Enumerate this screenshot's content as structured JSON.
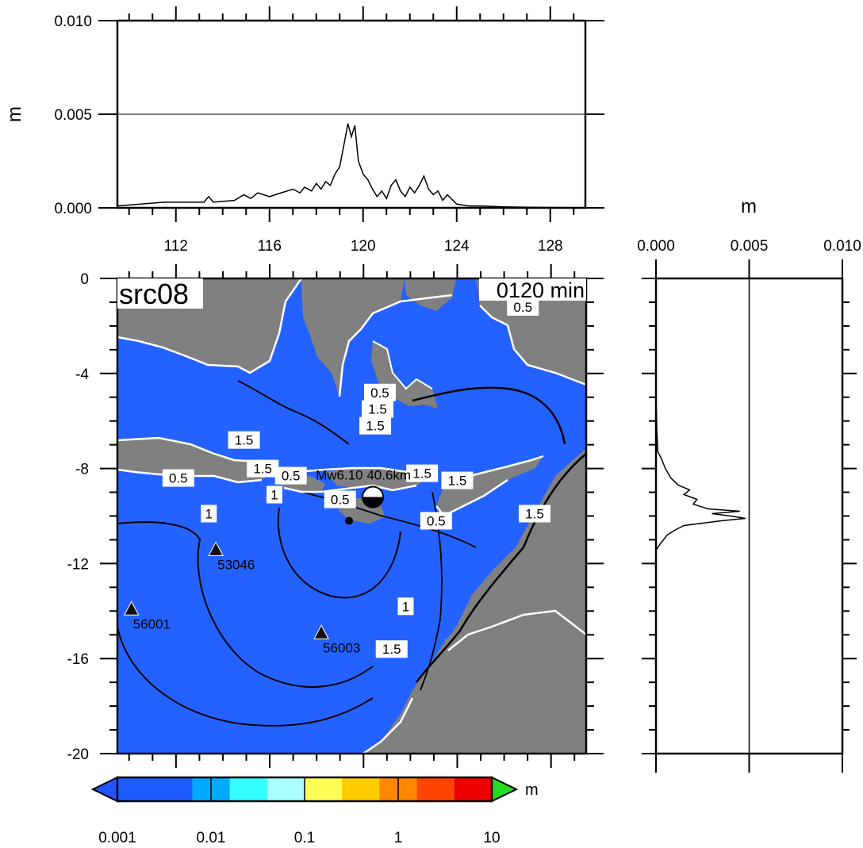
{
  "chart_data": [
    {
      "id": "top-profile",
      "type": "line",
      "ylabel": "m",
      "xlim": [
        109.5,
        129.5
      ],
      "ylim": [
        0,
        0.01
      ],
      "xticks": [
        112,
        116,
        120,
        124,
        128
      ],
      "xtick_labels": [
        "112",
        "116",
        "120",
        "124",
        "128"
      ],
      "yticks": [
        0,
        0.005,
        0.01
      ],
      "ytick_labels": [
        "0.000",
        "0.005",
        "0.010"
      ],
      "gridline_y": 0.005,
      "series": [
        {
          "x": [
            109.5,
            110.5,
            111.5,
            112.5,
            113.2,
            113.4,
            113.6,
            114.5,
            114.9,
            115.2,
            115.5,
            116.0,
            116.5,
            117.0,
            117.3,
            117.5,
            117.8,
            118.0,
            118.2,
            118.4,
            118.6,
            118.8,
            119.0,
            119.2,
            119.35,
            119.5,
            119.65,
            119.8,
            120.0,
            120.2,
            120.4,
            120.6,
            120.8,
            121.0,
            121.2,
            121.4,
            121.6,
            121.8,
            122.0,
            122.2,
            122.4,
            122.6,
            122.8,
            123.0,
            123.2,
            123.4,
            123.6,
            124.0,
            124.5,
            125.0,
            126.0,
            127.0,
            128.0,
            129.0
          ],
          "y": [
            0.0001,
            0.0002,
            0.0003,
            0.0003,
            0.0003,
            0.0006,
            0.0003,
            0.0004,
            0.0007,
            0.0005,
            0.0008,
            0.0006,
            0.0008,
            0.001,
            0.0008,
            0.0011,
            0.0009,
            0.0013,
            0.001,
            0.0014,
            0.0012,
            0.0018,
            0.0022,
            0.0035,
            0.0045,
            0.0038,
            0.0044,
            0.0025,
            0.0018,
            0.0015,
            0.001,
            0.0006,
            0.0009,
            0.0005,
            0.0012,
            0.0015,
            0.0009,
            0.0006,
            0.0011,
            0.0008,
            0.0012,
            0.0017,
            0.001,
            0.0007,
            0.0009,
            0.0004,
            0.0007,
            0.0002,
            0.0001,
            0.0001,
            5e-05,
            3e-05,
            2e-05,
            1e-05
          ]
        }
      ]
    },
    {
      "id": "right-profile",
      "type": "line",
      "xlabel": "m",
      "xlim": [
        0,
        0.01
      ],
      "ylim": [
        -20,
        0
      ],
      "xticks": [
        0,
        0.005,
        0.01
      ],
      "xtick_labels": [
        "0.000",
        "0.005",
        "0.010"
      ],
      "gridline_x": 0.005,
      "series": [
        {
          "y": [
            -5.5,
            -6.5,
            -7.3,
            -7.6,
            -8.0,
            -8.4,
            -8.7,
            -8.9,
            -9.1,
            -9.3,
            -9.5,
            -9.7,
            -9.8,
            -9.9,
            -10.0,
            -10.1,
            -10.2,
            -10.3,
            -10.4,
            -10.6,
            -10.8,
            -11.0,
            -11.2,
            -11.4
          ],
          "x": [
            2e-05,
            5e-05,
            0.0001,
            0.0003,
            0.0005,
            0.0008,
            0.0012,
            0.0018,
            0.0015,
            0.0022,
            0.002,
            0.0028,
            0.0045,
            0.003,
            0.004,
            0.0048,
            0.0035,
            0.0025,
            0.0015,
            0.001,
            0.0006,
            0.0004,
            0.0002,
            5e-05
          ]
        }
      ]
    },
    {
      "id": "main-map",
      "type": "heatmap",
      "title": "src08",
      "time_label": "0120 min",
      "xlim": [
        109.5,
        129.5
      ],
      "ylim": [
        -20,
        0
      ],
      "yticks": [
        0,
        -4,
        -8,
        -12,
        -16,
        -20
      ],
      "ytick_labels": [
        "0",
        "-4",
        "-8",
        "-12",
        "-16",
        "-20"
      ],
      "epicenter_label": "Mw6.10  40.6km",
      "epicenter": {
        "lon": 120.4,
        "lat": -9.2
      },
      "stations": [
        {
          "name": "53046",
          "lon": 113.7,
          "lat": -11.4
        },
        {
          "name": "56001",
          "lon": 110.1,
          "lat": -13.9
        },
        {
          "name": "56003",
          "lon": 118.2,
          "lat": -14.9
        }
      ],
      "contour_labels": [
        {
          "text": "0.5",
          "lon": 112.1,
          "lat": -8.4
        },
        {
          "text": "1.5",
          "lon": 114.9,
          "lat": -6.8
        },
        {
          "text": "1.5",
          "lon": 115.7,
          "lat": -8.0
        },
        {
          "text": "0.5",
          "lon": 116.9,
          "lat": -8.3
        },
        {
          "text": "1",
          "lon": 116.2,
          "lat": -9.1
        },
        {
          "text": "0.5",
          "lon": 119.0,
          "lat": -9.3
        },
        {
          "text": "1",
          "lon": 113.4,
          "lat": -9.9
        },
        {
          "text": "0.5",
          "lon": 120.7,
          "lat": -4.8
        },
        {
          "text": "1.5",
          "lon": 120.6,
          "lat": -5.5
        },
        {
          "text": "1.5",
          "lon": 120.5,
          "lat": -6.2
        },
        {
          "text": "1.5",
          "lon": 122.5,
          "lat": -8.2
        },
        {
          "text": "1.5",
          "lon": 124.0,
          "lat": -8.5
        },
        {
          "text": "0.5",
          "lon": 123.1,
          "lat": -10.2
        },
        {
          "text": "0.5",
          "lon": 126.8,
          "lat": -1.2
        },
        {
          "text": "1.5",
          "lon": 127.3,
          "lat": -9.9
        },
        {
          "text": "1",
          "lon": 121.8,
          "lat": -13.8
        },
        {
          "text": "1.5",
          "lon": 121.2,
          "lat": -15.6
        }
      ]
    },
    {
      "id": "colorbar",
      "type": "colorbar",
      "unit_label": "m",
      "scale": "log",
      "ticks": [
        0.001,
        0.01,
        0.1,
        1,
        10
      ],
      "tick_labels": [
        "0.001",
        "0.01",
        "0.1",
        "1",
        "10"
      ],
      "colors": [
        "#1f5cff",
        "#1f5cff",
        "#00aaff",
        "#33ffff",
        "#aaffff",
        "#ffff55",
        "#ffcc00",
        "#ff8800",
        "#ff4400",
        "#ee0000"
      ],
      "under_color": "#2255ff",
      "over_color": "#22dd22"
    }
  ]
}
